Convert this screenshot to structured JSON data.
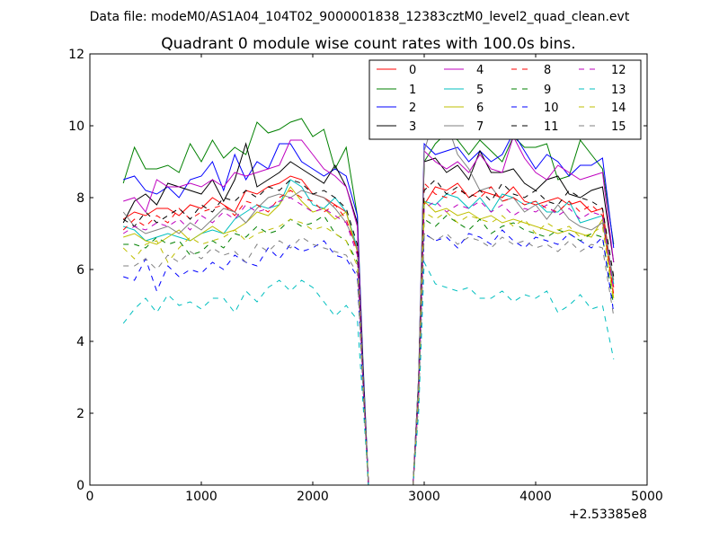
{
  "chart_data": {
    "type": "line",
    "suptitle": "Data file: modeM0/AS1A04_104T02_9000001838_12383cztM0_level2_quad_clean.evt",
    "title": "Quadrant 0 module wise count rates with 100.0s bins.",
    "xlabel": "",
    "ylabel": "",
    "x_offset_label": "+2.53385e8",
    "xlim": [
      0,
      5000
    ],
    "ylim": [
      0,
      12
    ],
    "x_ticks": [
      "0",
      "1000",
      "2000",
      "3000",
      "4000",
      "5000"
    ],
    "y_ticks": [
      "0",
      "2",
      "4",
      "6",
      "8",
      "10",
      "12"
    ],
    "grid": false,
    "legend_position": "top-right",
    "x": [
      300,
      400,
      500,
      600,
      700,
      800,
      900,
      1000,
      1100,
      1200,
      1300,
      1400,
      1500,
      1600,
      1700,
      1800,
      1900,
      2000,
      2100,
      2200,
      2300,
      2400,
      2450,
      2500,
      2600,
      2700,
      2800,
      2900,
      2950,
      3000,
      3100,
      3200,
      3300,
      3400,
      3500,
      3600,
      3700,
      3800,
      3900,
      4000,
      4100,
      4200,
      4300,
      4400,
      4500,
      4600,
      4700
    ],
    "series": [
      {
        "name": "0",
        "color": "#ff0000",
        "dash": "solid",
        "values": [
          7.4,
          7.6,
          7.5,
          7.7,
          7.7,
          7.5,
          7.8,
          7.7,
          8.0,
          7.8,
          7.6,
          8.2,
          8.1,
          8.3,
          8.4,
          8.6,
          8.5,
          8.1,
          8.0,
          7.8,
          7.6,
          6.5,
          3.0,
          0,
          0,
          0,
          0,
          0,
          2.5,
          7.8,
          8.3,
          8.2,
          8.4,
          8.0,
          8.2,
          8.1,
          8.0,
          8.3,
          7.9,
          7.8,
          7.9,
          8.0,
          7.8,
          7.9,
          7.6,
          7.7,
          5.5
        ]
      },
      {
        "name": "1",
        "color": "#008000",
        "dash": "solid",
        "values": [
          8.4,
          9.4,
          8.8,
          8.8,
          8.9,
          8.7,
          9.5,
          9.0,
          9.6,
          9.1,
          9.4,
          9.2,
          10.1,
          9.8,
          9.9,
          10.1,
          10.2,
          9.7,
          9.9,
          8.8,
          9.4,
          7.5,
          3.5,
          0,
          0,
          0,
          0,
          0,
          3.0,
          9.0,
          9.5,
          9.8,
          9.6,
          9.2,
          9.6,
          9.3,
          9.0,
          9.7,
          9.4,
          9.4,
          9.5,
          8.5,
          8.6,
          9.6,
          9.2,
          8.8,
          6.7
        ]
      },
      {
        "name": "2",
        "color": "#0000ff",
        "dash": "solid",
        "values": [
          8.5,
          8.6,
          8.2,
          8.1,
          8.3,
          8.0,
          8.5,
          8.6,
          9.0,
          8.2,
          9.2,
          8.5,
          9.0,
          8.8,
          9.5,
          9.5,
          9.0,
          8.8,
          8.6,
          8.8,
          8.6,
          7.5,
          3.4,
          0,
          0,
          0,
          0,
          0,
          3.0,
          9.5,
          9.2,
          9.3,
          9.4,
          9.0,
          9.3,
          9.0,
          9.2,
          9.8,
          9.3,
          8.8,
          9.2,
          9.0,
          8.6,
          8.9,
          8.9,
          9.1,
          6.6
        ]
      },
      {
        "name": "3",
        "color": "#000000",
        "dash": "solid",
        "values": [
          7.3,
          7.9,
          8.1,
          7.8,
          8.4,
          8.3,
          8.2,
          8.1,
          8.5,
          7.9,
          8.5,
          9.5,
          8.3,
          8.5,
          8.7,
          9.0,
          8.8,
          8.6,
          8.4,
          8.9,
          8.3,
          7.3,
          3.2,
          0,
          0,
          0,
          0,
          0,
          2.9,
          9.0,
          9.1,
          8.7,
          8.9,
          8.5,
          9.3,
          8.7,
          8.7,
          8.8,
          8.4,
          8.2,
          8.5,
          8.6,
          8.1,
          8.0,
          8.2,
          8.3,
          6.2
        ]
      },
      {
        "name": "4",
        "color": "#bf00bf",
        "dash": "solid",
        "values": [
          7.9,
          8.0,
          7.6,
          8.5,
          8.3,
          8.3,
          8.4,
          8.3,
          8.5,
          8.3,
          8.7,
          8.6,
          8.7,
          8.8,
          8.9,
          9.6,
          9.6,
          9.2,
          8.8,
          8.6,
          8.3,
          7.2,
          3.2,
          0,
          0,
          0,
          0,
          0,
          2.8,
          9.3,
          9.0,
          8.8,
          9.0,
          8.7,
          9.2,
          8.8,
          8.7,
          9.7,
          9.1,
          8.7,
          8.5,
          8.9,
          8.7,
          8.5,
          8.6,
          8.7,
          6.2
        ]
      },
      {
        "name": "5",
        "color": "#00bfbf",
        "dash": "solid",
        "values": [
          7.2,
          7.1,
          6.8,
          6.9,
          7.0,
          6.9,
          6.8,
          7.0,
          7.1,
          7.0,
          7.4,
          7.6,
          7.8,
          7.7,
          7.8,
          8.5,
          8.3,
          7.8,
          7.7,
          8.0,
          7.6,
          6.6,
          3.0,
          0,
          0,
          0,
          0,
          0,
          2.7,
          7.9,
          7.8,
          8.1,
          8.0,
          7.7,
          8.0,
          7.6,
          8.1,
          8.0,
          7.8,
          7.9,
          7.6,
          7.6,
          7.9,
          7.3,
          7.4,
          7.5,
          5.6
        ]
      },
      {
        "name": "6",
        "color": "#bfbf00",
        "dash": "solid",
        "values": [
          6.9,
          7.0,
          6.8,
          6.7,
          6.9,
          7.1,
          6.8,
          7.0,
          7.2,
          7.0,
          7.1,
          7.3,
          7.6,
          7.5,
          7.8,
          8.3,
          7.9,
          7.6,
          7.7,
          7.4,
          7.6,
          6.5,
          2.9,
          0,
          0,
          0,
          0,
          0,
          2.6,
          7.9,
          7.6,
          7.7,
          7.5,
          7.6,
          7.4,
          7.5,
          7.3,
          7.4,
          7.3,
          7.2,
          7.1,
          7.0,
          7.1,
          7.0,
          6.9,
          7.4,
          5.2
        ]
      },
      {
        "name": "7",
        "color": "#808080",
        "dash": "solid",
        "values": [
          7.6,
          7.2,
          7.0,
          7.1,
          7.2,
          7.0,
          7.3,
          7.1,
          7.4,
          7.7,
          7.6,
          7.3,
          7.7,
          8.0,
          8.1,
          8.0,
          8.2,
          8.1,
          8.0,
          7.7,
          7.3,
          6.6,
          3.1,
          0,
          0,
          0,
          0,
          0,
          3.0,
          9.3,
          10.3,
          10.1,
          9.2,
          8.8,
          8.2,
          8.3,
          7.9,
          8.0,
          7.6,
          7.8,
          7.4,
          7.8,
          7.4,
          7.2,
          7.1,
          7.3,
          5.7
        ]
      },
      {
        "name": "8",
        "color": "#ff0000",
        "dash": "dashed",
        "values": [
          7.1,
          7.4,
          7.2,
          7.5,
          7.3,
          7.7,
          7.4,
          7.6,
          7.7,
          7.8,
          7.5,
          7.9,
          7.8,
          7.6,
          8.0,
          8.2,
          8.0,
          7.9,
          7.6,
          7.8,
          7.4,
          6.5,
          3.0,
          0,
          0,
          0,
          0,
          0,
          2.6,
          8.4,
          8.1,
          8.0,
          8.2,
          8.1,
          8.0,
          8.3,
          7.9,
          8.0,
          7.8,
          7.9,
          7.7,
          7.6,
          7.9,
          7.6,
          7.8,
          7.5,
          5.3
        ]
      },
      {
        "name": "9",
        "color": "#008000",
        "dash": "dashed",
        "values": [
          6.7,
          6.7,
          6.6,
          6.9,
          6.7,
          6.8,
          6.4,
          6.5,
          6.8,
          6.6,
          7.0,
          6.9,
          7.2,
          7.0,
          7.1,
          7.4,
          7.2,
          7.3,
          7.5,
          7.0,
          6.8,
          6.2,
          2.8,
          0,
          0,
          0,
          0,
          0,
          2.4,
          7.4,
          7.2,
          7.5,
          7.3,
          7.1,
          7.4,
          7.0,
          7.2,
          7.3,
          7.1,
          7.0,
          6.9,
          7.1,
          7.0,
          6.8,
          7.0,
          6.9,
          5.0
        ]
      },
      {
        "name": "10",
        "color": "#0000ff",
        "dash": "dashed",
        "values": [
          5.8,
          5.7,
          6.3,
          5.4,
          6.1,
          5.8,
          6.0,
          5.9,
          6.2,
          6.0,
          6.4,
          6.2,
          6.1,
          6.6,
          6.3,
          6.7,
          6.5,
          6.6,
          6.8,
          6.4,
          6.3,
          5.8,
          2.7,
          0,
          0,
          0,
          0,
          0,
          2.4,
          7.0,
          6.8,
          6.9,
          6.6,
          7.0,
          6.9,
          6.7,
          7.1,
          6.8,
          6.6,
          6.9,
          6.8,
          6.7,
          7.0,
          6.8,
          6.6,
          6.9,
          4.8
        ]
      },
      {
        "name": "11",
        "color": "#000000",
        "dash": "dashed",
        "values": [
          7.4,
          7.2,
          7.6,
          7.3,
          7.5,
          7.7,
          7.4,
          7.8,
          7.6,
          8.0,
          7.9,
          8.2,
          8.0,
          8.3,
          8.2,
          8.5,
          8.4,
          8.1,
          8.2,
          8.0,
          7.7,
          6.7,
          3.1,
          0,
          0,
          0,
          0,
          0,
          2.7,
          8.2,
          8.5,
          8.1,
          8.3,
          8.0,
          8.2,
          7.9,
          8.4,
          8.1,
          8.0,
          8.2,
          7.9,
          7.8,
          8.2,
          8.0,
          7.9,
          7.7,
          5.8
        ]
      },
      {
        "name": "12",
        "color": "#bf00bf",
        "dash": "dashed",
        "values": [
          7.0,
          7.2,
          7.1,
          7.3,
          7.2,
          7.4,
          7.1,
          7.5,
          7.3,
          7.6,
          7.4,
          7.8,
          7.6,
          7.7,
          7.9,
          8.0,
          7.8,
          7.6,
          7.7,
          7.5,
          7.3,
          6.4,
          2.9,
          0,
          0,
          0,
          0,
          0,
          2.6,
          7.7,
          7.9,
          7.6,
          7.8,
          7.7,
          7.9,
          7.6,
          7.8,
          7.5,
          7.7,
          7.6,
          7.8,
          7.5,
          7.7,
          7.4,
          7.6,
          7.5,
          5.4
        ]
      },
      {
        "name": "13",
        "color": "#00bfbf",
        "dash": "dashed",
        "values": [
          4.5,
          4.9,
          5.2,
          4.8,
          5.3,
          5.0,
          5.1,
          4.9,
          5.2,
          5.2,
          4.8,
          5.4,
          5.1,
          5.5,
          5.7,
          5.4,
          5.7,
          5.5,
          5.1,
          4.7,
          5.0,
          4.6,
          2.3,
          0,
          0,
          0,
          0,
          0,
          2.0,
          6.2,
          5.6,
          5.5,
          5.4,
          5.5,
          5.2,
          5.2,
          5.4,
          5.1,
          5.3,
          5.2,
          5.4,
          4.8,
          5.0,
          5.3,
          4.9,
          5.0,
          3.5
        ]
      },
      {
        "name": "14",
        "color": "#bfbf00",
        "dash": "dashed",
        "values": [
          6.6,
          6.3,
          6.7,
          6.8,
          6.2,
          6.6,
          6.9,
          6.7,
          6.8,
          6.9,
          7.1,
          6.8,
          7.0,
          7.1,
          7.2,
          7.4,
          7.3,
          7.1,
          7.2,
          7.0,
          6.8,
          6.1,
          2.8,
          0,
          0,
          0,
          0,
          0,
          2.5,
          7.6,
          7.4,
          7.6,
          7.3,
          7.5,
          7.4,
          7.3,
          7.5,
          7.2,
          7.4,
          7.0,
          7.3,
          7.1,
          7.2,
          6.9,
          7.0,
          7.2,
          5.1
        ]
      },
      {
        "name": "15",
        "color": "#808080",
        "dash": "dashed",
        "values": [
          6.1,
          6.1,
          6.3,
          6.0,
          6.4,
          6.2,
          6.5,
          6.3,
          6.6,
          6.4,
          6.5,
          6.2,
          6.7,
          6.5,
          6.8,
          6.6,
          6.9,
          6.7,
          6.6,
          6.5,
          6.4,
          5.9,
          2.7,
          0,
          0,
          0,
          0,
          0,
          2.3,
          7.0,
          6.8,
          7.0,
          6.7,
          6.9,
          6.8,
          6.6,
          6.9,
          6.7,
          6.8,
          6.6,
          6.7,
          6.5,
          6.8,
          6.5,
          6.7,
          6.6,
          4.7
        ]
      }
    ]
  }
}
